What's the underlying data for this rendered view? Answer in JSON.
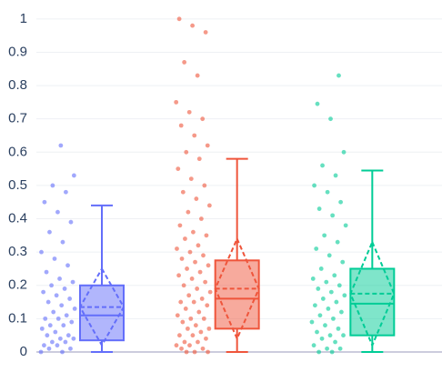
{
  "chart_data": {
    "type": "box",
    "ylim": [
      0,
      1.005
    ],
    "yticks": [
      0,
      0.1,
      0.2,
      0.3,
      0.4,
      0.5,
      0.6,
      0.7,
      0.8,
      0.9,
      1
    ],
    "grid": true,
    "boxpoints": "all",
    "boxmean": "sd",
    "series": [
      {
        "color": "#636efa",
        "lower": 0,
        "q1": 0.035,
        "median": 0.11,
        "q3": 0.2,
        "upper": 0.44,
        "mean": 0.135,
        "sd": 0.115,
        "points": [
          0,
          0,
          0.01,
          0.01,
          0.02,
          0.02,
          0.03,
          0.03,
          0.04,
          0.04,
          0.05,
          0.05,
          0.06,
          0.07,
          0.08,
          0.08,
          0.09,
          0.1,
          0.1,
          0.11,
          0.12,
          0.13,
          0.14,
          0.15,
          0.16,
          0.17,
          0.18,
          0.19,
          0.2,
          0.21,
          0.22,
          0.24,
          0.26,
          0.28,
          0.3,
          0.33,
          0.36,
          0.39,
          0.42,
          0.45,
          0.48,
          0.5,
          0.53,
          0.62
        ]
      },
      {
        "color": "#EF553B",
        "lower": 0,
        "q1": 0.07,
        "median": 0.16,
        "q3": 0.275,
        "upper": 0.58,
        "mean": 0.19,
        "sd": 0.15,
        "points": [
          0,
          0,
          0,
          0.01,
          0.01,
          0.02,
          0.02,
          0.03,
          0.03,
          0.04,
          0.05,
          0.05,
          0.06,
          0.07,
          0.07,
          0.08,
          0.09,
          0.1,
          0.1,
          0.11,
          0.12,
          0.13,
          0.14,
          0.15,
          0.15,
          0.16,
          0.17,
          0.18,
          0.19,
          0.2,
          0.21,
          0.22,
          0.23,
          0.24,
          0.25,
          0.26,
          0.27,
          0.28,
          0.29,
          0.3,
          0.31,
          0.32,
          0.34,
          0.35,
          0.36,
          0.38,
          0.4,
          0.42,
          0.44,
          0.46,
          0.48,
          0.5,
          0.52,
          0.55,
          0.58,
          0.6,
          0.62,
          0.65,
          0.68,
          0.7,
          0.72,
          0.75,
          0.83,
          0.87,
          0.96,
          0.98,
          1
        ]
      },
      {
        "color": "#00cc96",
        "lower": 0,
        "q1": 0.05,
        "median": 0.145,
        "q3": 0.25,
        "upper": 0.545,
        "mean": 0.175,
        "sd": 0.155,
        "points": [
          0,
          0,
          0.01,
          0.01,
          0.02,
          0.03,
          0.04,
          0.05,
          0.05,
          0.06,
          0.07,
          0.08,
          0.09,
          0.1,
          0.11,
          0.12,
          0.13,
          0.14,
          0.15,
          0.16,
          0.17,
          0.18,
          0.19,
          0.2,
          0.21,
          0.22,
          0.23,
          0.25,
          0.27,
          0.29,
          0.31,
          0.33,
          0.35,
          0.38,
          0.41,
          0.43,
          0.45,
          0.48,
          0.5,
          0.53,
          0.56,
          0.6,
          0.7,
          0.745,
          0.83
        ]
      }
    ]
  }
}
